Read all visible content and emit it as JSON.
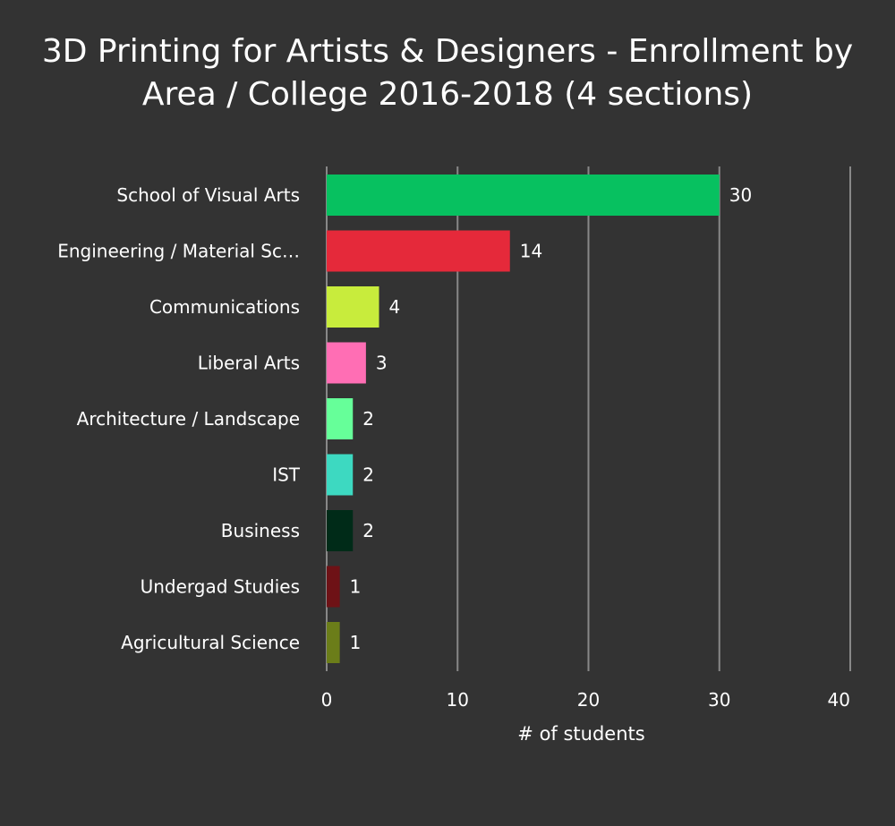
{
  "chart_data": {
    "type": "bar",
    "orientation": "horizontal",
    "title": "3D Printing for Artists & Designers - Enrollment by Area / College 2016-2018 (4 sections)",
    "xlabel": "# of students",
    "ylabel": "",
    "xlim": [
      0,
      40
    ],
    "xticks": [
      0,
      10,
      20,
      30,
      40
    ],
    "grid": true,
    "categories": [
      "School of Visual Arts",
      "Engineering / Material Sc…",
      "Communications",
      "Liberal Arts",
      "Architecture / Landscape",
      "IST",
      "Business",
      "Undergad Studies",
      "Agricultural Science"
    ],
    "values": [
      30,
      14,
      4,
      3,
      2,
      2,
      2,
      1,
      1
    ],
    "colors": [
      "#07c160",
      "#e5293a",
      "#c8ec3c",
      "#ff6eb4",
      "#66ff99",
      "#3dd9c1",
      "#002b18",
      "#6e1216",
      "#6b7d19"
    ],
    "data_labels": true
  },
  "theme": {
    "background": "#333333",
    "text": "#ffffff",
    "gridline": "#888888"
  }
}
